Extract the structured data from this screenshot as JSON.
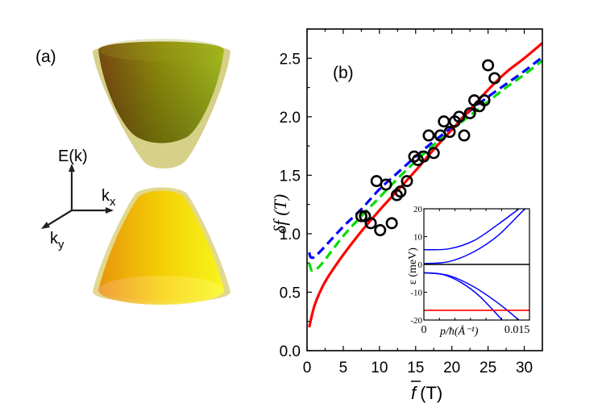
{
  "panel_a": {
    "label": "(a)",
    "axes": {
      "energy": "E(k)",
      "kx": "k",
      "kx_sub": "x",
      "ky": "k",
      "ky_sub": "y"
    },
    "colors": {
      "upper_band": "#8a8a10",
      "lower_band": "#f2d000"
    }
  },
  "panel_b": {
    "label": "(b)",
    "ylabel_main": "δf",
    "ylabel_unit": "(T)",
    "xlabel_main": "f",
    "xlabel_unit": "(T)"
  },
  "chart_data": [
    {
      "type": "scatter",
      "title": "(b)",
      "xlabel": "f̄ (T)",
      "ylabel": "δf (T)",
      "xlim": [
        0,
        32.5
      ],
      "ylim": [
        0,
        2.75
      ],
      "xticks": [
        "0",
        "5",
        "10",
        "15",
        "20",
        "25",
        "30"
      ],
      "yticks": [
        "0.0",
        "0.5",
        "1.0",
        "1.5",
        "2.0",
        "2.5"
      ],
      "grid": false,
      "series": [
        {
          "name": "data",
          "style": "open-circle",
          "color": "#000000",
          "x": [
            7.5,
            8.0,
            8.8,
            9.6,
            10.1,
            10.9,
            11.7,
            12.4,
            12.9,
            13.8,
            14.8,
            15.3,
            16.1,
            16.8,
            17.5,
            18.4,
            18.9,
            19.7,
            20.4,
            21.0,
            21.7,
            22.5,
            23.1,
            23.8,
            24.5,
            25.0,
            25.9
          ],
          "y": [
            1.15,
            1.15,
            1.09,
            1.45,
            1.03,
            1.42,
            1.09,
            1.33,
            1.36,
            1.45,
            1.66,
            1.63,
            1.66,
            1.84,
            1.69,
            1.84,
            1.96,
            1.87,
            1.96,
            2.0,
            1.84,
            2.03,
            2.14,
            2.09,
            2.14,
            2.44,
            2.33
          ]
        },
        {
          "name": "fit-red-solid",
          "style": "solid",
          "color": "#ff0000",
          "x": [
            0.3,
            1,
            2,
            3,
            5,
            7.5,
            10,
            12.5,
            15,
            17.5,
            20,
            22.5,
            25,
            27.5,
            30,
            32.5
          ],
          "y": [
            0.2,
            0.38,
            0.53,
            0.64,
            0.82,
            1.02,
            1.2,
            1.37,
            1.54,
            1.72,
            1.89,
            2.06,
            2.23,
            2.38,
            2.5,
            2.63
          ]
        },
        {
          "name": "fit-blue-dashed",
          "style": "dashed",
          "color": "#0000ff",
          "x": [
            0.3,
            0.5,
            1,
            2,
            5,
            7.5,
            10,
            12.5,
            15,
            17.5,
            20,
            22.5,
            25,
            27.5,
            30,
            32.5
          ],
          "y": [
            0.84,
            0.8,
            0.8,
            0.86,
            1.06,
            1.21,
            1.38,
            1.52,
            1.66,
            1.79,
            1.91,
            2.05,
            2.17,
            2.28,
            2.39,
            2.51
          ]
        },
        {
          "name": "fit-green-dashed",
          "style": "dashed",
          "color": "#00dd00",
          "x": [
            0.3,
            0.6,
            1,
            2,
            5,
            7.5,
            10,
            12.5,
            15,
            17.5,
            20,
            22.5,
            25,
            27.5,
            30,
            32.5
          ],
          "y": [
            0.75,
            0.69,
            0.69,
            0.74,
            0.98,
            1.15,
            1.31,
            1.47,
            1.62,
            1.76,
            1.89,
            2.01,
            2.13,
            2.25,
            2.36,
            2.48
          ]
        }
      ]
    },
    {
      "type": "line",
      "title": "inset",
      "xlabel": "p/ħ(Å⁻¹)",
      "ylabel": "ε (meV)",
      "xlim": [
        0,
        0.017
      ],
      "ylim": [
        -20,
        20
      ],
      "xticks": [
        "0",
        "0.015"
      ],
      "yticks": [
        "20",
        "10",
        "0",
        "-10",
        "-20"
      ],
      "series": [
        {
          "name": "upper-band-1",
          "color": "#0000ff",
          "x": [
            0,
            0.004,
            0.008,
            0.012,
            0.0153
          ],
          "y": [
            5.3,
            5.6,
            8.5,
            14.5,
            20
          ]
        },
        {
          "name": "upper-band-2",
          "color": "#0000ff",
          "x": [
            0,
            0.004,
            0.008,
            0.012,
            0.0163,
            0.017
          ],
          "y": [
            0.3,
            1.0,
            4.5,
            10.5,
            20,
            20
          ]
        },
        {
          "name": "lower-band-1",
          "color": "#0000ff",
          "x": [
            0,
            0.003,
            0.006,
            0.009,
            0.0126
          ],
          "y": [
            -3.0,
            -3.6,
            -6.5,
            -11.5,
            -20
          ]
        },
        {
          "name": "lower-band-2",
          "color": "#0000ff",
          "x": [
            0,
            0.004,
            0.008,
            0.012,
            0.0153
          ],
          "y": [
            -3.0,
            -4.0,
            -8.0,
            -14.0,
            -20
          ]
        },
        {
          "name": "zero-line",
          "color": "#000000",
          "x": [
            0,
            0.017
          ],
          "y": [
            0,
            0
          ]
        },
        {
          "name": "fermi-level",
          "color": "#ff0000",
          "x": [
            0,
            0.017
          ],
          "y": [
            -16.5,
            -16.5
          ]
        }
      ]
    }
  ]
}
